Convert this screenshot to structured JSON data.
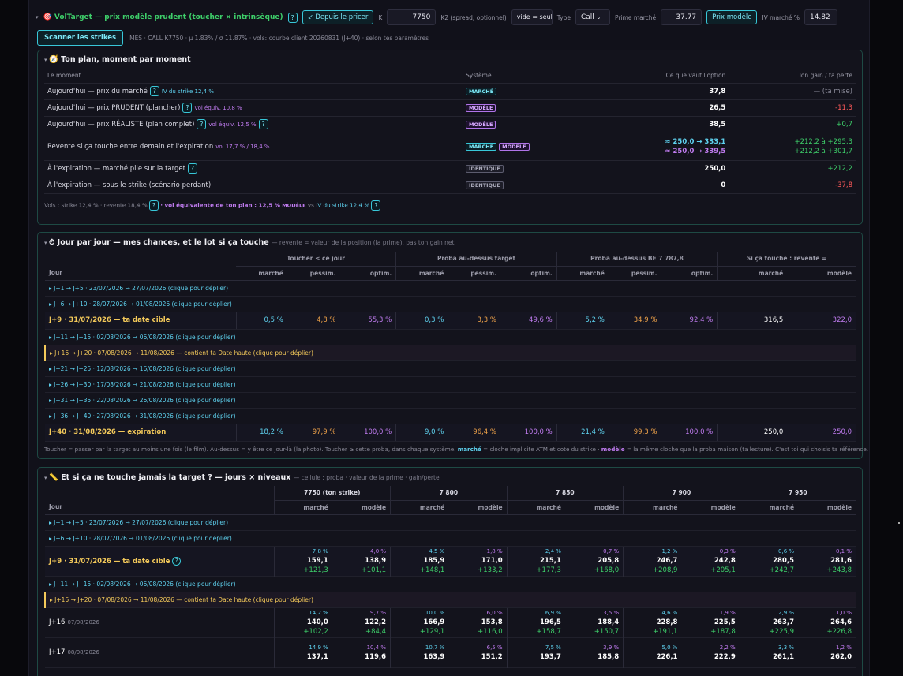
{
  "topbar": {
    "title": "🎯 VolTarget — prix modèle prudent (toucher × intrinsèque)",
    "help": "?",
    "from_pricer": "↙ Depuis le pricer",
    "k_label": "K",
    "k_value": "7750",
    "k2_label": "K2 (spread, optionnel)",
    "k2_placeholder": "vide = seul",
    "type_label": "Type",
    "type_value": "Call",
    "prime_label": "Prime marché",
    "prime_value": "37.77",
    "model_btn": "Prix modèle",
    "iv_label": "IV marché %",
    "iv_value": "14.82"
  },
  "sub": {
    "scan_btn": "Scanner les strikes",
    "info": "MES · CALL K7750 · μ 1.83% / σ 11.87% · vols: courbe client 20260831 (J+40) · selon tes paramètres"
  },
  "plan": {
    "title": "🧭 Ton plan, moment par moment",
    "headers": [
      "Le moment",
      "Système",
      "Ce que vaut l'option",
      "Ton gain / ta perte"
    ],
    "rows": [
      {
        "moment": "Aujourd'hui — prix du marché",
        "note": "IV du strike 12,4 %",
        "tags": [
          "MARCHÉ"
        ],
        "value": "37,8",
        "gain": "— (ta mise)",
        "gain_color": "grey"
      },
      {
        "moment": "Aujourd'hui — prix PRUDENT (plancher)",
        "note": "vol équiv. 10,8 %",
        "tags": [
          "MODÈLE"
        ],
        "value": "26,5",
        "gain": "-11,3",
        "gain_color": "red"
      },
      {
        "moment": "Aujourd'hui — prix RÉALISTE (plan complet)",
        "note": "vol équiv. 12,5 %",
        "tags": [
          "MODÈLE"
        ],
        "value": "38,5",
        "gain": "+0,7",
        "gain_color": "green"
      },
      {
        "moment": "Revente si ça touche entre demain et l'expiration",
        "note": "vol 17,7 % / 18,4 %",
        "tags": [
          "MARCHÉ",
          "MODÈLE"
        ],
        "value": "≈ 250,0 → 333,1",
        "value2": "≈ 250,0 → 339,5",
        "gain": "+212,2 à +295,3",
        "gain2": "+212,2 à +301,7",
        "gain_color": "green"
      },
      {
        "moment": "À l'expiration — marché pile sur la target",
        "note": "",
        "tags": [
          "IDENTIQUE"
        ],
        "value": "250,0",
        "gain": "+212,2",
        "gain_color": "green"
      },
      {
        "moment": "À l'expiration — sous le strike (scénario perdant)",
        "note": "",
        "tags": [
          "IDENTIQUE"
        ],
        "value": "0",
        "gain": "-37,8",
        "gain_color": "red"
      }
    ],
    "footer_a": "Vols : strike 12,4 % · revente 18,4 %",
    "footer_b": "· vol équivalente de ton plan : 12,5 %",
    "footer_c": "MODÈLE",
    "footer_d": "vs",
    "footer_e": "IV du strike 12,4 %"
  },
  "daily": {
    "title": "⏱ Jour par jour — mes chances, et le lot si ça touche",
    "note": "— revente = valeur de la position (la prime), pas ton gain net",
    "group_headers": [
      "Toucher ≤ ce jour",
      "Proba au-dessus target",
      "Proba au-dessus BE 7 787,8",
      "Si ça touche : revente ="
    ],
    "col_day": "Jour",
    "sub_headers": [
      "marché",
      "pessim.",
      "optim.",
      "marché",
      "pessim.",
      "optim.",
      "marché",
      "pessim.",
      "optim.",
      "marché",
      "modèle"
    ],
    "rows": [
      {
        "kind": "exp",
        "label": "▸ J+1 → J+5 · 23/07/2026 → 27/07/2026 (clique pour déplier)"
      },
      {
        "kind": "exp",
        "label": "▸ J+6 → J+10 · 28/07/2026 → 01/08/2026 (clique pour déplier)"
      },
      {
        "kind": "big",
        "label": "J+9 · 31/07/2026 — ta date cible",
        "vals": [
          "0,5 %",
          "4,8 %",
          "55,3 %",
          "0,3 %",
          "3,3 %",
          "49,6 %",
          "5,2 %",
          "34,9 %",
          "92,4 %",
          "316,5",
          "322,0"
        ]
      },
      {
        "kind": "exp",
        "label": "▸ J+11 → J+15 · 02/08/2026 → 06/08/2026 (clique pour déplier)"
      },
      {
        "kind": "hl",
        "label": "▸ J+16 → J+20 · 07/08/2026 → 11/08/2026 — contient ta Date haute (clique pour déplier)"
      },
      {
        "kind": "exp",
        "label": "▸ J+21 → J+25 · 12/08/2026 → 16/08/2026 (clique pour déplier)"
      },
      {
        "kind": "exp",
        "label": "▸ J+26 → J+30 · 17/08/2026 → 21/08/2026 (clique pour déplier)"
      },
      {
        "kind": "exp",
        "label": "▸ J+31 → J+35 · 22/08/2026 → 26/08/2026 (clique pour déplier)"
      },
      {
        "kind": "exp",
        "label": "▸ J+36 → J+40 · 27/08/2026 → 31/08/2026 (clique pour déplier)"
      },
      {
        "kind": "big",
        "label": "J+40 · 31/08/2026 — expiration",
        "vals": [
          "18,2 %",
          "97,9 %",
          "100,0 %",
          "9,0 %",
          "96,4 %",
          "100,0 %",
          "21,4 %",
          "99,3 %",
          "100,0 %",
          "250,0",
          "250,0"
        ]
      }
    ],
    "footer_a": "Toucher = passer par la target au moins une fois (le film). Au-dessus = y être ce jour-là (la photo). Toucher ≥ cette proba, dans chaque système.",
    "footer_m": "marché",
    "footer_b": "= cloche implicite ATM et cote du strike ·",
    "footer_mod": "modèle",
    "footer_c": "= la même cloche que la proba maison (ta lecture). C'est toi qui choisis ta référence."
  },
  "levels": {
    "title": "📏 Et si ça ne touche jamais la target ? — jours × niveaux",
    "note": "— cellule : proba · valeur de la prime · gain/perte",
    "col_day": "Jour",
    "level_headers": [
      "7750 (ton strike)",
      "7 800",
      "7 850",
      "7 900",
      "7 950"
    ],
    "sub_headers": [
      "marché",
      "modèle",
      "marché",
      "modèle",
      "marché",
      "modèle",
      "marché",
      "modèle",
      "marché",
      "modèle"
    ],
    "rows": [
      {
        "kind": "exp",
        "label": "▸ J+1 → J+5 · 23/07/2026 → 27/07/2026 (clique pour déplier)"
      },
      {
        "kind": "exp",
        "label": "▸ J+6 → J+10 · 28/07/2026 → 01/08/2026 (clique pour déplier)"
      },
      {
        "kind": "cells",
        "label": "J+9 · 31/07/2026 — ta date cible",
        "target": true,
        "cells": [
          [
            "7,8 %",
            "159,1",
            "+121,3"
          ],
          [
            "4,0 %",
            "138,9",
            "+101,1"
          ],
          [
            "4,5 %",
            "185,9",
            "+148,1"
          ],
          [
            "1,8 %",
            "171,0",
            "+133,2"
          ],
          [
            "2,4 %",
            "215,1",
            "+177,3"
          ],
          [
            "0,7 %",
            "205,8",
            "+168,0"
          ],
          [
            "1,2 %",
            "246,7",
            "+208,9"
          ],
          [
            "0,3 %",
            "242,8",
            "+205,1"
          ],
          [
            "0,6 %",
            "280,5",
            "+242,7"
          ],
          [
            "0,1 %",
            "281,6",
            "+243,8"
          ]
        ]
      },
      {
        "kind": "exp",
        "label": "▸ J+11 → J+15 · 02/08/2026 → 06/08/2026 (clique pour déplier)"
      },
      {
        "kind": "hl",
        "label": "▸ J+16 → J+20 · 07/08/2026 → 11/08/2026 — contient ta Date haute (clique pour déplier)"
      },
      {
        "kind": "cells",
        "label": "J+16",
        "date": "07/08/2026",
        "cells": [
          [
            "14,2 %",
            "140,0",
            "+102,2"
          ],
          [
            "9,7 %",
            "122,2",
            "+84,4"
          ],
          [
            "10,0 %",
            "166,9",
            "+129,1"
          ],
          [
            "6,0 %",
            "153,8",
            "+116,0"
          ],
          [
            "6,9 %",
            "196,5",
            "+158,7"
          ],
          [
            "3,5 %",
            "188,4",
            "+150,7"
          ],
          [
            "4,6 %",
            "228,8",
            "+191,1"
          ],
          [
            "1,9 %",
            "225,5",
            "+187,8"
          ],
          [
            "2,9 %",
            "263,7",
            "+225,9"
          ],
          [
            "1,0 %",
            "264,6",
            "+226,8"
          ]
        ]
      },
      {
        "kind": "cells",
        "label": "J+17",
        "date": "08/08/2026",
        "cells": [
          [
            "14,9 %",
            "137,1",
            ""
          ],
          [
            "10,4 %",
            "119,6",
            ""
          ],
          [
            "10,7 %",
            "163,9",
            ""
          ],
          [
            "6,5 %",
            "151,2",
            ""
          ],
          [
            "7,5 %",
            "193,7",
            ""
          ],
          [
            "3,9 %",
            "185,8",
            ""
          ],
          [
            "5,0 %",
            "226,1",
            ""
          ],
          [
            "2,2 %",
            "222,9",
            ""
          ],
          [
            "3,3 %",
            "261,1",
            ""
          ],
          [
            "1,2 %",
            "262,0",
            ""
          ]
        ]
      }
    ]
  }
}
